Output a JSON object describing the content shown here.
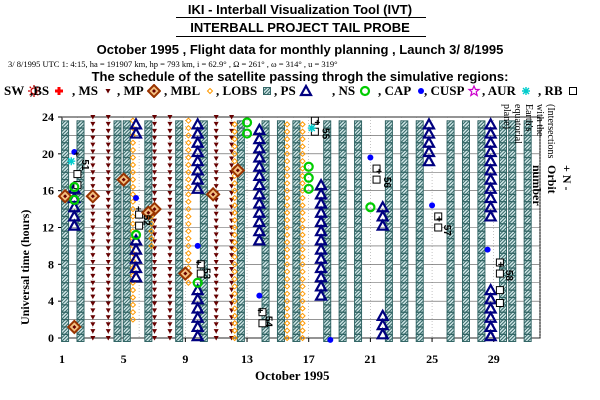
{
  "header": {
    "title": "IKI - Interball Visualization Tool (IVT)",
    "subtitle": "INTERBALL PROJECT TAIL PROBE",
    "flight_line": "October  1995 ,  Flight data for monthly planning ,   Launch  3/ 8/1995",
    "orbit_info": "3/ 8/1995 UTC   1: 4:15, ha = 191907 km, hp =    793 km, i = 62.9° , Ω = 261° , ω = 314° , u = 319°",
    "schedule": "The schedule of the satellite passing throgh the simulative regions:"
  },
  "legend": [
    {
      "label": "SW",
      "icon": "sun-icon",
      "color": "#cc0000"
    },
    {
      "label": ",BS",
      "icon": "cross-icon",
      "color": "#ff0000"
    },
    {
      "label": ", MS",
      "icon": "down-triangle-icon",
      "color": "#660000"
    },
    {
      "label": ", MP",
      "icon": "diamond-icon",
      "color": "#993300"
    },
    {
      "label": ", MBL",
      "icon": "filled-diamond-icon",
      "color": "#ff9900"
    },
    {
      "label": ", LOBS",
      "icon": "hatched-square-icon",
      "color": "#336666"
    },
    {
      "label": ", PS",
      "icon": "triangle-icon",
      "color": "#000080"
    },
    {
      "label": ", NS",
      "icon": "ring-icon",
      "color": "#00cc00"
    },
    {
      "label": ", CAP",
      "icon": "dot-icon",
      "color": "#0000ff"
    },
    {
      "label": ", CUSP",
      "icon": "star-icon",
      "color": "#cc00cc"
    },
    {
      "label": ", AUR",
      "icon": "asterisk-icon",
      "color": "#00cccc"
    },
    {
      "label": ", RB",
      "icon": "square-icon",
      "color": "#000000"
    }
  ],
  "chart_data": {
    "type": "scatter",
    "xlabel": "October  1995",
    "ylabel": "Universal time (hours)",
    "y2label": "+ N - Orbit number",
    "y2sublabel": "(Intersections with the Earth's equatorial plane)",
    "xlim": [
      1,
      32
    ],
    "ylim": [
      0,
      24
    ],
    "xticks": [
      1,
      5,
      9,
      13,
      17,
      21,
      25,
      29
    ],
    "yticks": [
      0,
      4,
      8,
      12,
      16,
      20,
      24
    ],
    "grid": true,
    "orbit_labels": [
      {
        "orbit": "51",
        "day": 1.9,
        "hour": 19.4,
        "sign": "+"
      },
      {
        "orbit": "52",
        "day": 5.9,
        "hour": 13.4,
        "sign": "+"
      },
      {
        "orbit": "53",
        "day": 9.8,
        "hour": 7.6,
        "sign": "+"
      },
      {
        "orbit": "54",
        "day": 13.8,
        "hour": 2.4,
        "sign": "+"
      },
      {
        "orbit": "55",
        "day": 17.5,
        "hour": 22.8,
        "sign": "+"
      },
      {
        "orbit": "56",
        "day": 21.5,
        "hour": 17.5,
        "sign": "+"
      },
      {
        "orbit": "57",
        "day": 25.4,
        "hour": 12.3,
        "sign": "+"
      },
      {
        "orbit": "58",
        "day": 29.4,
        "hour": 7.4,
        "sign": "+"
      }
    ],
    "series": [
      {
        "name": "PS",
        "icon": "triangle-icon",
        "color": "#000080",
        "columns": [
          {
            "day": 1.8,
            "from": 12.2,
            "to": 16.2
          },
          {
            "day": 5.8,
            "from": 22.2,
            "to": 24
          },
          {
            "day": 5.8,
            "from": 6.6,
            "to": 10.6
          },
          {
            "day": 9.8,
            "from": 0.2,
            "to": 5.8
          },
          {
            "day": 9.8,
            "from": 16.2,
            "to": 24
          },
          {
            "day": 13.8,
            "from": 10.6,
            "to": 22.6
          },
          {
            "day": 17.8,
            "from": 4.6,
            "to": 17.0
          },
          {
            "day": 21.8,
            "from": 12.2,
            "to": 14.6
          },
          {
            "day": 21.8,
            "from": 0.4,
            "to": 2.6
          },
          {
            "day": 24.8,
            "from": 19.2,
            "to": 24
          },
          {
            "day": 28.8,
            "from": 13.2,
            "to": 24
          },
          {
            "day": 28.8,
            "from": 0.2,
            "to": 5.8
          }
        ]
      },
      {
        "name": "MS",
        "icon": "down-triangle-icon",
        "color": "#660000",
        "columns": [
          {
            "day": 3.0,
            "from": 0,
            "to": 24
          },
          {
            "day": 4.0,
            "from": 0,
            "to": 24
          },
          {
            "day": 7.0,
            "from": 0,
            "to": 24
          },
          {
            "day": 8.0,
            "from": 0,
            "to": 24
          },
          {
            "day": 11.0,
            "from": 0,
            "to": 24
          },
          {
            "day": 12.0,
            "from": 0,
            "to": 24
          }
        ]
      },
      {
        "name": "LOBS",
        "icon": "hatched-square-icon",
        "color": "#336666",
        "columns": [
          {
            "day": 1.2,
            "from": 0,
            "to": 24
          },
          {
            "day": 2.2,
            "from": 0,
            "to": 24
          },
          {
            "day": 4.6,
            "from": 0,
            "to": 24
          },
          {
            "day": 5.2,
            "from": 0,
            "to": 24
          },
          {
            "day": 6.6,
            "from": 0,
            "to": 24
          },
          {
            "day": 8.6,
            "from": 0,
            "to": 24
          },
          {
            "day": 10.2,
            "from": 0,
            "to": 24
          },
          {
            "day": 12.6,
            "from": 0,
            "to": 24
          },
          {
            "day": 14.2,
            "from": 0,
            "to": 24
          },
          {
            "day": 15.2,
            "from": 0,
            "to": 24
          },
          {
            "day": 16.2,
            "from": 0,
            "to": 24
          },
          {
            "day": 18.2,
            "from": 0,
            "to": 24
          },
          {
            "day": 19.2,
            "from": 0,
            "to": 24
          },
          {
            "day": 20.2,
            "from": 0,
            "to": 24
          },
          {
            "day": 22.2,
            "from": 0,
            "to": 24
          },
          {
            "day": 23.2,
            "from": 0,
            "to": 24
          },
          {
            "day": 24.2,
            "from": 0,
            "to": 24
          },
          {
            "day": 26.2,
            "from": 0,
            "to": 24
          },
          {
            "day": 27.2,
            "from": 0,
            "to": 24
          },
          {
            "day": 28.2,
            "from": 0,
            "to": 24
          },
          {
            "day": 29.6,
            "from": 0,
            "to": 24
          },
          {
            "day": 30.2,
            "from": 0,
            "to": 24
          },
          {
            "day": 31.2,
            "from": 0,
            "to": 24
          }
        ]
      },
      {
        "name": "MBL",
        "icon": "filled-diamond-icon",
        "color": "#ff9900",
        "columns": [
          {
            "day": 5.6,
            "from": 2,
            "to": 24
          },
          {
            "day": 9.2,
            "from": 6,
            "to": 24
          },
          {
            "day": 12.2,
            "from": 0,
            "to": 24
          },
          {
            "day": 15.6,
            "from": 0,
            "to": 24
          },
          {
            "day": 16.6,
            "from": 0,
            "to": 24
          },
          {
            "day": 6.8,
            "from": 10,
            "to": 14
          }
        ]
      },
      {
        "name": "MP",
        "icon": "diamond-icon",
        "color": "#993300",
        "points": [
          [
            1.8,
            1.2
          ],
          [
            3.0,
            15.4
          ],
          [
            5.0,
            17.2
          ],
          [
            7.0,
            14.0
          ],
          [
            6.6,
            13.6
          ],
          [
            9.0,
            7.0
          ],
          [
            10.8,
            15.6
          ],
          [
            12.4,
            18.2
          ],
          [
            1.2,
            15.4
          ]
        ]
      },
      {
        "name": "NS",
        "icon": "ring-icon",
        "color": "#00cc00",
        "points": [
          [
            1.8,
            15.0
          ],
          [
            5.8,
            11.2
          ],
          [
            9.8,
            6.0
          ],
          [
            13.0,
            22.2
          ],
          [
            13.0,
            23.4
          ],
          [
            17.0,
            16.2
          ],
          [
            17.0,
            17.4
          ],
          [
            17.0,
            18.6
          ],
          [
            21.0,
            14.2
          ],
          [
            1.8,
            16.4
          ]
        ]
      },
      {
        "name": "CAP",
        "icon": "dot-icon",
        "color": "#0000ff",
        "points": [
          [
            1.8,
            20.2
          ],
          [
            5.8,
            15.2
          ],
          [
            9.8,
            10.0
          ],
          [
            13.8,
            4.6
          ],
          [
            18.4,
            -0.2
          ],
          [
            21.0,
            19.6
          ],
          [
            25.0,
            14.4
          ],
          [
            28.6,
            9.6
          ]
        ]
      },
      {
        "name": "RB",
        "icon": "square-icon",
        "color": "#000000",
        "points": [
          [
            2.0,
            17.8
          ],
          [
            2.0,
            16.6
          ],
          [
            6.0,
            13.4
          ],
          [
            6.0,
            12.2
          ],
          [
            10.0,
            8.0
          ],
          [
            10.0,
            7.0
          ],
          [
            14.0,
            2.8
          ],
          [
            14.0,
            1.6
          ],
          [
            17.4,
            23.6
          ],
          [
            17.4,
            22.4
          ],
          [
            21.4,
            18.4
          ],
          [
            21.4,
            17.2
          ],
          [
            25.4,
            13.2
          ],
          [
            25.4,
            12.0
          ],
          [
            29.4,
            8.2
          ],
          [
            29.4,
            7.0
          ],
          [
            29.4,
            5.2
          ],
          [
            29.4,
            3.8
          ]
        ]
      },
      {
        "name": "AUR",
        "icon": "asterisk-icon",
        "color": "#00cccc",
        "points": [
          [
            17.2,
            22.8
          ],
          [
            1.6,
            19.2
          ]
        ]
      }
    ]
  }
}
